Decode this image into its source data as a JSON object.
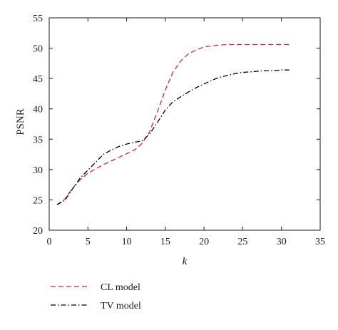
{
  "chart_data": {
    "type": "line",
    "xlabel": "k",
    "ylabel": "PSNR",
    "xlim": [
      0,
      35
    ],
    "ylim": [
      20,
      55
    ],
    "xticks": [
      0,
      5,
      10,
      15,
      20,
      25,
      30,
      35
    ],
    "yticks": [
      20,
      25,
      30,
      35,
      40,
      45,
      50,
      55
    ],
    "grid": false,
    "legend_position": "bottom-left, below plot",
    "series": [
      {
        "name": "CL model",
        "color": "#d62728",
        "line_style": "dashed",
        "x": [
          1,
          2,
          3,
          4,
          5,
          6,
          7,
          8,
          9,
          10,
          11,
          12,
          13,
          14,
          15,
          16,
          17,
          18,
          19,
          20,
          21,
          22,
          23,
          24,
          25,
          26,
          27,
          28,
          29,
          30,
          31
        ],
        "y": [
          24.2,
          25.1,
          26.9,
          28.3,
          29.4,
          30.1,
          30.8,
          31.4,
          32.0,
          32.6,
          33.2,
          34.3,
          36.3,
          39.6,
          43.1,
          46.1,
          47.9,
          49.1,
          49.7,
          50.2,
          50.4,
          50.5,
          50.6,
          50.6,
          50.6,
          50.6,
          50.6,
          50.6,
          50.6,
          50.6,
          50.6
        ]
      },
      {
        "name": "TV model",
        "color": "#000000",
        "line_style": "dash-dot",
        "x": [
          1,
          2,
          3,
          4,
          5,
          6,
          7,
          8,
          9,
          10,
          11,
          12,
          13,
          14,
          15,
          16,
          17,
          18,
          19,
          20,
          21,
          22,
          23,
          24,
          25,
          26,
          27,
          28,
          29,
          30,
          31
        ],
        "y": [
          24.2,
          24.9,
          26.8,
          28.6,
          29.9,
          31.2,
          32.5,
          33.2,
          33.8,
          34.2,
          34.5,
          34.7,
          35.9,
          37.8,
          39.8,
          41.2,
          42.0,
          42.8,
          43.5,
          44.1,
          44.7,
          45.2,
          45.5,
          45.8,
          46.0,
          46.1,
          46.2,
          46.3,
          46.3,
          46.4,
          46.4
        ]
      }
    ]
  }
}
